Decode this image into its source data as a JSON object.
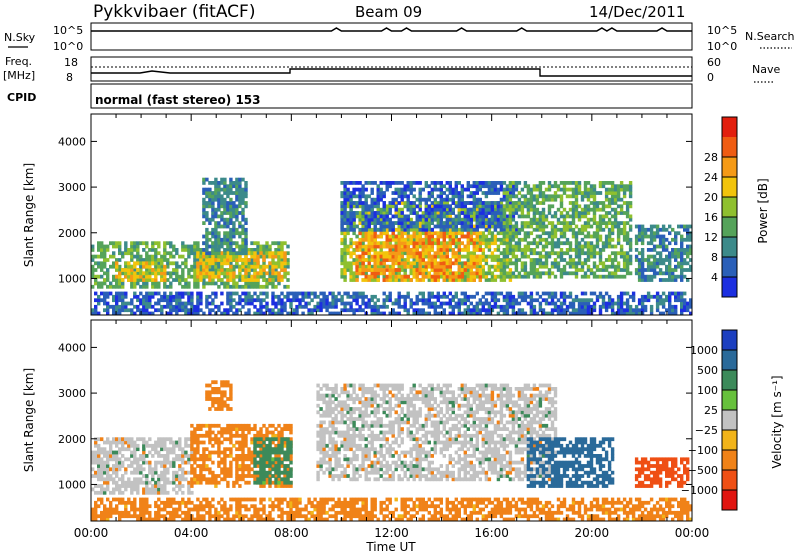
{
  "header": {
    "station": "Pykkvibaer (fitACF)",
    "beam": "Beam 09",
    "date": "14/Dec/2011"
  },
  "strips": {
    "nsky": {
      "label": "N.Sky",
      "ticks_left": [
        "10^5",
        "10^0"
      ],
      "ticks_right": [
        "10^5",
        "10^0"
      ],
      "right_label": "N.Search"
    },
    "freq": {
      "label_line1": "Freq.",
      "label_line2": "[MHz]",
      "ticks_left": [
        "18",
        "8"
      ],
      "ticks_right": [
        "60",
        "0"
      ],
      "right_label": "Nave"
    },
    "cpid": {
      "label": "CPID",
      "value": "normal (fast stereo) 153"
    }
  },
  "axes": {
    "ylabel": "Slant Range [km]",
    "xlabel": "Time UT",
    "xticks": [
      "00:00",
      "04:00",
      "08:00",
      "12:00",
      "16:00",
      "20:00",
      "00:00"
    ],
    "yticks": [
      "1000",
      "2000",
      "3000",
      "4000"
    ]
  },
  "colorbars": {
    "power": {
      "label": "Power [dB]",
      "ticks": [
        "4",
        "8",
        "12",
        "16",
        "20",
        "24",
        "28"
      ],
      "colors": [
        "#1c2fe0",
        "#2a5fb8",
        "#3c8a8a",
        "#55a35a",
        "#8fc02f",
        "#f2c40c",
        "#f59a16",
        "#ef5c12",
        "#e21f0e"
      ]
    },
    "velocity": {
      "label": "Velocity [m s⁻¹]",
      "ticks": [
        "1000",
        "500",
        "100",
        "25",
        "−25",
        "−100",
        "−500",
        "−1000"
      ],
      "colors": [
        "#1c3fc0",
        "#2a6a9a",
        "#3c8a5a",
        "#67c13c",
        "#c2c2c2",
        "#f2b419",
        "#f08218",
        "#ef4f14",
        "#e01410"
      ]
    }
  },
  "chart_data": [
    {
      "type": "heatmap",
      "title": "Power",
      "x_unit": "hours UT",
      "xlim": [
        0,
        24
      ],
      "ylim": [
        200,
        4600
      ],
      "regions": [
        {
          "t0": 0.0,
          "t1": 7.9,
          "r0": 800,
          "r1": 1800,
          "level": 16
        },
        {
          "t0": 1.0,
          "t1": 3.0,
          "r0": 900,
          "r1": 1400,
          "level": 24
        },
        {
          "t0": 4.3,
          "t1": 7.8,
          "r0": 950,
          "r1": 1600,
          "level": 24
        },
        {
          "t0": 4.5,
          "t1": 6.2,
          "r0": 1500,
          "r1": 3200,
          "level": 12
        },
        {
          "t0": 10.0,
          "t1": 16.7,
          "r0": 900,
          "r1": 2700,
          "level": 20
        },
        {
          "t0": 10.6,
          "t1": 15.6,
          "r0": 900,
          "r1": 2000,
          "level": 28
        },
        {
          "t0": 10.0,
          "t1": 17.0,
          "r0": 2000,
          "r1": 3100,
          "level": 8
        },
        {
          "t0": 16.5,
          "t1": 21.5,
          "r0": 1000,
          "r1": 3100,
          "level": 16
        },
        {
          "t0": 21.8,
          "t1": 24.0,
          "r0": 900,
          "r1": 2200,
          "level": 12
        },
        {
          "t0": 0.0,
          "t1": 24.0,
          "r0": 200,
          "r1": 700,
          "level": 8
        }
      ]
    },
    {
      "type": "heatmap",
      "title": "Velocity",
      "x_unit": "hours UT",
      "xlim": [
        0,
        24
      ],
      "ylim": [
        200,
        4600
      ],
      "regions": [
        {
          "t0": 0.0,
          "t1": 4.0,
          "r0": 800,
          "r1": 2000,
          "level": 25
        },
        {
          "t0": 4.0,
          "t1": 8.0,
          "r0": 900,
          "r1": 2300,
          "level": -100
        },
        {
          "t0": 4.6,
          "t1": 5.6,
          "r0": 2600,
          "r1": 3300,
          "level": -100
        },
        {
          "t0": 6.5,
          "t1": 8.0,
          "r0": 1000,
          "r1": 2000,
          "level": 100
        },
        {
          "t0": 9.0,
          "t1": 18.5,
          "r0": 1100,
          "r1": 3200,
          "level": 25
        },
        {
          "t0": 17.5,
          "t1": 20.8,
          "r0": 900,
          "r1": 2000,
          "level": 500
        },
        {
          "t0": 21.8,
          "t1": 23.8,
          "r0": 900,
          "r1": 1600,
          "level": -500
        },
        {
          "t0": 0.0,
          "t1": 24.0,
          "r0": 200,
          "r1": 700,
          "level": -100
        }
      ]
    }
  ]
}
